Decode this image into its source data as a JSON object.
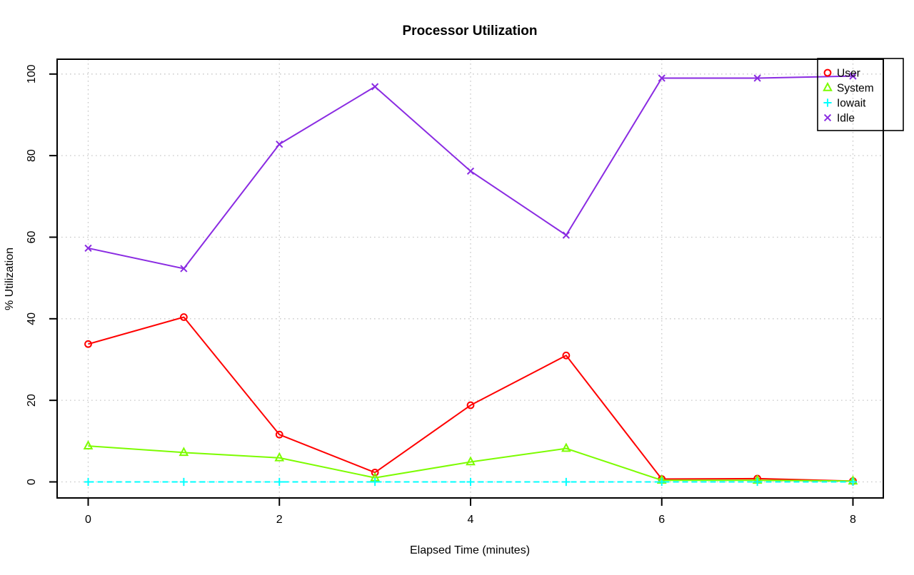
{
  "chart_data": {
    "type": "line",
    "title": "Processor Utilization",
    "xlabel": "Elapsed Time (minutes)",
    "ylabel": "% Utilization",
    "x": [
      0,
      1,
      2,
      3,
      4,
      5,
      6,
      7,
      8
    ],
    "xtick_labels": [
      "0",
      "2",
      "4",
      "6",
      "8"
    ],
    "xtick_values": [
      0,
      2,
      4,
      6,
      8
    ],
    "ytick_labels": [
      "0",
      "20",
      "40",
      "60",
      "80",
      "100"
    ],
    "ytick_values": [
      0,
      20,
      40,
      60,
      80,
      100
    ],
    "xlim": [
      -0.32,
      8.32
    ],
    "ylim": [
      -4,
      104
    ],
    "grid": "dotted",
    "grid_color": "#c8c8c8",
    "legend_position": "topright",
    "axis_color": "#000000",
    "series": [
      {
        "name": "User",
        "color": "#ff0000",
        "marker": "circle",
        "line_style": "solid",
        "values": [
          33.8,
          40.4,
          11.6,
          2.3,
          18.8,
          31.0,
          0.7,
          0.8,
          0.2
        ]
      },
      {
        "name": "System",
        "color": "#7cfc00",
        "marker": "triangle",
        "line_style": "solid",
        "values": [
          8.8,
          7.2,
          5.9,
          1.0,
          4.9,
          8.2,
          0.4,
          0.4,
          0.2
        ]
      },
      {
        "name": "Iowait",
        "color": "#00ffff",
        "marker": "plus",
        "line_style": "dashed",
        "values": [
          0,
          0,
          0,
          0,
          0,
          0,
          0,
          0,
          0
        ]
      },
      {
        "name": "Idle",
        "color": "#8a2be2",
        "marker": "x",
        "line_style": "solid",
        "values": [
          57.3,
          52.3,
          82.8,
          96.9,
          76.2,
          60.5,
          99.0,
          99.0,
          99.5
        ]
      }
    ]
  }
}
